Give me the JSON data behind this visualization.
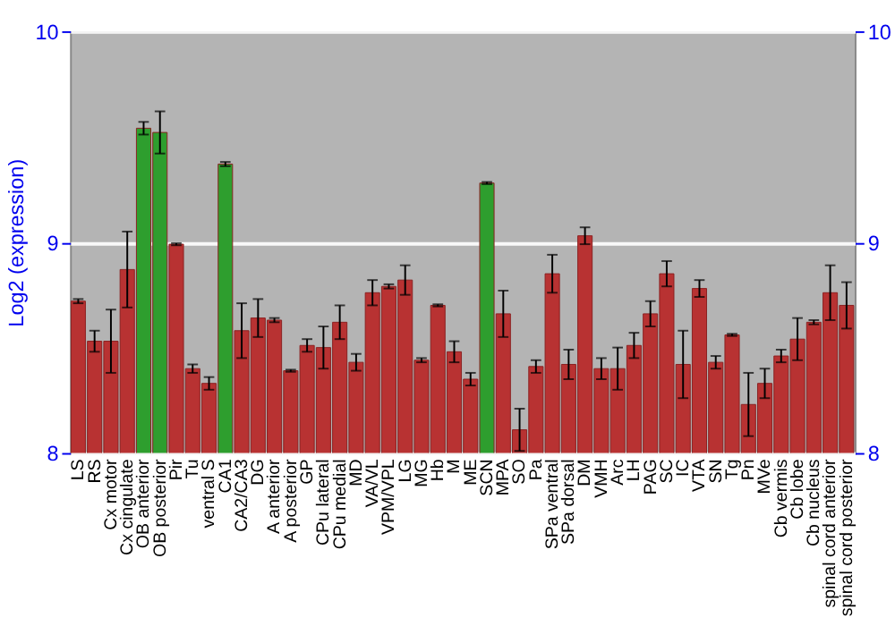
{
  "chart_data": {
    "type": "bar",
    "ylabel": "Log2 (expression)",
    "categories": [
      "LS",
      "RS",
      "Cx motor",
      "Cx cingulate",
      "OB anterior",
      "OB posterior",
      "Pir",
      "Tu",
      "ventral S",
      "CA1",
      "CA2/CA3",
      "DG",
      "A anterior",
      "A posterior",
      "GP",
      "CPu lateral",
      "CPu medial",
      "MD",
      "VA/VL",
      "VPM/VPL",
      "LG",
      "MG",
      "Hb",
      "M",
      "ME",
      "SCN",
      "MPA",
      "SO",
      "Pa",
      "SPa ventral",
      "SPa dorsal",
      "DM",
      "VMH",
      "Arc",
      "LH",
      "PAG",
      "SC",
      "IC",
      "VTA",
      "SN",
      "Tg",
      "Pn",
      "MVe",
      "Cb vermis",
      "Cb lobe",
      "Cb nucleus",
      "spinal cord anterior",
      "spinal cord posterior"
    ],
    "values": [
      8.72,
      8.53,
      8.53,
      8.87,
      9.54,
      9.52,
      8.99,
      8.4,
      8.33,
      9.37,
      8.58,
      8.64,
      8.63,
      8.39,
      8.51,
      8.5,
      8.62,
      8.43,
      8.76,
      8.79,
      8.82,
      8.44,
      8.7,
      8.48,
      8.35,
      9.28,
      8.66,
      8.11,
      8.41,
      8.85,
      8.42,
      9.03,
      8.4,
      8.4,
      8.51,
      8.66,
      8.85,
      8.42,
      8.78,
      8.43,
      8.56,
      8.23,
      8.33,
      8.46,
      8.54,
      8.62,
      8.76,
      8.7
    ],
    "errors": [
      0.01,
      0.05,
      0.15,
      0.18,
      0.03,
      0.1,
      0.005,
      0.02,
      0.03,
      0.01,
      0.13,
      0.09,
      0.01,
      0.005,
      0.03,
      0.1,
      0.08,
      0.04,
      0.06,
      0.01,
      0.07,
      0.01,
      0.005,
      0.05,
      0.03,
      0.005,
      0.11,
      0.1,
      0.03,
      0.09,
      0.07,
      0.04,
      0.05,
      0.1,
      0.06,
      0.06,
      0.06,
      0.16,
      0.04,
      0.03,
      0.005,
      0.15,
      0.07,
      0.03,
      0.1,
      0.01,
      0.13,
      0.11
    ],
    "colors": [
      "#b83232",
      "#b83232",
      "#b83232",
      "#b83232",
      "#2e9e2e",
      "#2e9e2e",
      "#b83232",
      "#b83232",
      "#b83232",
      "#2e9e2e",
      "#b83232",
      "#b83232",
      "#b83232",
      "#b83232",
      "#b83232",
      "#b83232",
      "#b83232",
      "#b83232",
      "#b83232",
      "#b83232",
      "#b83232",
      "#b83232",
      "#b83232",
      "#b83232",
      "#b83232",
      "#2e9e2e",
      "#b83232",
      "#b83232",
      "#b83232",
      "#b83232",
      "#b83232",
      "#b83232",
      "#b83232",
      "#b83232",
      "#b83232",
      "#b83232",
      "#b83232",
      "#b83232",
      "#b83232",
      "#b83232",
      "#b83232",
      "#b83232",
      "#b83232",
      "#b83232",
      "#b83232",
      "#b83232",
      "#b83232",
      "#b83232"
    ],
    "ylim": [
      8,
      10
    ],
    "yticks": [
      8,
      9,
      10
    ],
    "y2lim": [
      8,
      10
    ],
    "y2ticks": [
      8,
      9,
      10
    ],
    "grid": "y"
  }
}
